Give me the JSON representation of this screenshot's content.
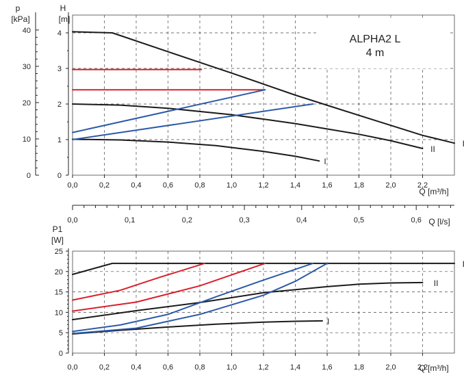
{
  "title_box": {
    "line1": "ALPHA2 L",
    "line2": "4 m",
    "color": "#d6203b"
  },
  "colors": {
    "black": "#1a1a1a",
    "red": "#d8202b",
    "blue": "#2b5aa8"
  },
  "chart_data": [
    {
      "type": "line",
      "panel": "head",
      "x_label": "Q [m³/h]",
      "y_left_labels": [
        "p",
        "[kPa]"
      ],
      "y_right_labels": [
        "H",
        "[m]"
      ],
      "xlim": [
        0,
        2.4
      ],
      "ylim_m": [
        0,
        4.5
      ],
      "x_ticks": [
        "0,0",
        "0,2",
        "0,4",
        "0,6",
        "0,8",
        "1,0",
        "1,2",
        "1,4",
        "1,6",
        "1,8",
        "2,0",
        "2,2"
      ],
      "x_tick_values": [
        0,
        0.2,
        0.4,
        0.6,
        0.8,
        1.0,
        1.2,
        1.4,
        1.6,
        1.8,
        2.0,
        2.2
      ],
      "h_ticks": [
        "0",
        "1",
        "2",
        "3",
        "4"
      ],
      "h_tick_values": [
        0,
        1,
        2,
        3,
        4
      ],
      "p_ticks": [
        "0",
        "10",
        "20",
        "30",
        "40"
      ],
      "p_tick_values_m": [
        0,
        1.02,
        2.04,
        3.06,
        4.08
      ],
      "series": [
        {
          "name": "III",
          "color": "black",
          "points": [
            [
              0,
              4.03
            ],
            [
              0.25,
              4.0
            ],
            [
              0.6,
              3.47
            ],
            [
              1.0,
              2.87
            ],
            [
              1.4,
              2.25
            ],
            [
              1.8,
              1.68
            ],
            [
              2.2,
              1.12
            ],
            [
              2.4,
              0.9
            ]
          ]
        },
        {
          "name": "II",
          "color": "black",
          "points": [
            [
              0,
              2.0
            ],
            [
              0.3,
              1.97
            ],
            [
              0.6,
              1.88
            ],
            [
              1.0,
              1.7
            ],
            [
              1.4,
              1.45
            ],
            [
              1.8,
              1.15
            ],
            [
              2.0,
              0.97
            ],
            [
              2.2,
              0.75
            ]
          ]
        },
        {
          "name": "I",
          "color": "black",
          "points": [
            [
              0,
              1.01
            ],
            [
              0.3,
              0.99
            ],
            [
              0.6,
              0.93
            ],
            [
              0.9,
              0.83
            ],
            [
              1.2,
              0.67
            ],
            [
              1.4,
              0.53
            ],
            [
              1.55,
              0.4
            ]
          ]
        },
        {
          "name": "",
          "color": "red",
          "points": [
            [
              0,
              2.97
            ],
            [
              0.81,
              2.97
            ]
          ]
        },
        {
          "name": "",
          "color": "red",
          "points": [
            [
              0,
              2.4
            ],
            [
              1.21,
              2.4
            ]
          ]
        },
        {
          "name": "",
          "color": "blue",
          "points": [
            [
              0,
              1.2
            ],
            [
              1.21,
              2.4
            ]
          ]
        },
        {
          "name": "",
          "color": "blue",
          "points": [
            [
              0,
              1.0
            ],
            [
              1.51,
              2.0
            ]
          ]
        }
      ],
      "curve_labels": [
        {
          "text": "III",
          "x": 2.45,
          "y": 0.9
        },
        {
          "text": "II",
          "x": 2.25,
          "y": 0.75
        },
        {
          "text": "I",
          "x": 1.58,
          "y": 0.4
        }
      ]
    },
    {
      "type": "line",
      "panel": "power",
      "x_label_top": "Q [l/s]",
      "x_ticks_top": [
        "0,0",
        "0,1",
        "0,2",
        "0,3",
        "0,4",
        "0,5",
        "0,6"
      ],
      "x_tick_values_top_m3h": [
        0,
        0.36,
        0.72,
        1.08,
        1.44,
        1.8,
        2.16
      ],
      "x_label": "Q [m³/h]",
      "y_labels": [
        "P1",
        "[W]"
      ],
      "xlim": [
        0,
        2.4
      ],
      "ylim": [
        0,
        25
      ],
      "x_ticks": [
        "0,0",
        "0,2",
        "0,4",
        "0,6",
        "0,8",
        "1,0",
        "1,2",
        "1,4",
        "1,6",
        "1,8",
        "2,0",
        "2,2"
      ],
      "x_tick_values": [
        0,
        0.2,
        0.4,
        0.6,
        0.8,
        1.0,
        1.2,
        1.4,
        1.6,
        1.8,
        2.0,
        2.2
      ],
      "y_ticks": [
        "0",
        "5",
        "10",
        "15",
        "20",
        "25"
      ],
      "y_tick_values": [
        0,
        5,
        10,
        15,
        20,
        25
      ],
      "series": [
        {
          "name": "III",
          "color": "black",
          "points": [
            [
              0,
              19.3
            ],
            [
              0.25,
              22
            ],
            [
              2.4,
              22
            ]
          ]
        },
        {
          "name": "II",
          "color": "black",
          "points": [
            [
              0,
              8.2
            ],
            [
              0.4,
              10.4
            ],
            [
              0.8,
              12.4
            ],
            [
              1.2,
              14.8
            ],
            [
              1.6,
              16.3
            ],
            [
              1.8,
              16.9
            ],
            [
              2.0,
              17.2
            ],
            [
              2.2,
              17.3
            ]
          ]
        },
        {
          "name": "I",
          "color": "black",
          "points": [
            [
              0,
              4.7
            ],
            [
              0.3,
              5.6
            ],
            [
              0.6,
              6.4
            ],
            [
              0.9,
              7.1
            ],
            [
              1.2,
              7.6
            ],
            [
              1.4,
              7.8
            ],
            [
              1.57,
              7.9
            ]
          ]
        },
        {
          "name": "",
          "color": "red",
          "points": [
            [
              0,
              13
            ],
            [
              0.3,
              15.4
            ],
            [
              0.55,
              18.6
            ],
            [
              0.83,
              22
            ]
          ]
        },
        {
          "name": "",
          "color": "red",
          "points": [
            [
              0,
              10.3
            ],
            [
              0.4,
              12.5
            ],
            [
              0.8,
              16.5
            ],
            [
              1.21,
              22
            ]
          ]
        },
        {
          "name": "",
          "color": "blue",
          "points": [
            [
              0,
              5.3
            ],
            [
              0.3,
              6.9
            ],
            [
              0.6,
              9.5
            ],
            [
              0.9,
              13.8
            ],
            [
              1.2,
              17.9
            ],
            [
              1.51,
              22
            ]
          ]
        },
        {
          "name": "",
          "color": "blue",
          "points": [
            [
              0,
              4.8
            ],
            [
              0.4,
              6.1
            ],
            [
              0.8,
              9.5
            ],
            [
              1.2,
              14.2
            ],
            [
              1.4,
              17.6
            ],
            [
              1.6,
              22
            ]
          ]
        }
      ],
      "curve_labels": [
        {
          "text": "III",
          "x": 2.45,
          "y": 22
        },
        {
          "text": "II",
          "x": 2.27,
          "y": 17.3
        },
        {
          "text": "I",
          "x": 1.6,
          "y": 7.9
        }
      ]
    }
  ]
}
